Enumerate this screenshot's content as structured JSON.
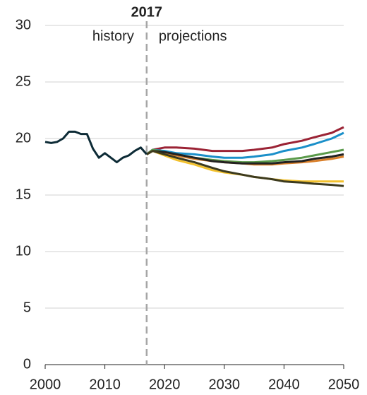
{
  "chart_data": {
    "type": "line",
    "annotations": [
      {
        "text": "2017",
        "x": 2017
      },
      {
        "text": "history"
      },
      {
        "text": "projections"
      }
    ],
    "vline": 2017,
    "xlim": [
      2000,
      2050
    ],
    "xticks": [
      2000,
      2010,
      2020,
      2030,
      2040,
      2050
    ],
    "ylim": [
      0,
      30
    ],
    "yticks": [
      0,
      5,
      10,
      15,
      20,
      25,
      30
    ],
    "grid": true,
    "series": [
      {
        "color": "#9b2335",
        "x": [
          2017,
          2018,
          2020,
          2022,
          2025,
          2028,
          2030,
          2033,
          2035,
          2038,
          2040,
          2043,
          2045,
          2048,
          2050
        ],
        "values": [
          18.6,
          19.0,
          19.2,
          19.2,
          19.1,
          18.9,
          18.9,
          18.9,
          19.0,
          19.2,
          19.5,
          19.8,
          20.1,
          20.5,
          21.0
        ]
      },
      {
        "color": "#1a8fc9",
        "x": [
          2017,
          2018,
          2020,
          2022,
          2025,
          2028,
          2030,
          2033,
          2035,
          2038,
          2040,
          2043,
          2045,
          2048,
          2050
        ],
        "values": [
          18.6,
          19.0,
          18.9,
          18.7,
          18.6,
          18.4,
          18.3,
          18.3,
          18.4,
          18.6,
          18.9,
          19.2,
          19.5,
          20.0,
          20.5
        ]
      },
      {
        "color": "#5a9a4a",
        "x": [
          2017,
          2018,
          2020,
          2022,
          2025,
          2028,
          2030,
          2033,
          2035,
          2038,
          2040,
          2043,
          2045,
          2048,
          2050
        ],
        "values": [
          18.6,
          19.0,
          18.8,
          18.6,
          18.3,
          18.1,
          18.0,
          17.9,
          17.9,
          18.0,
          18.1,
          18.3,
          18.5,
          18.8,
          19.0
        ]
      },
      {
        "color": "#d97f2a",
        "x": [
          2017,
          2018,
          2020,
          2022,
          2025,
          2028,
          2030,
          2033,
          2035,
          2038,
          2040,
          2043,
          2045,
          2048,
          2050
        ],
        "values": [
          18.6,
          18.9,
          18.7,
          18.5,
          18.2,
          18.0,
          17.9,
          17.8,
          17.7,
          17.7,
          17.8,
          17.9,
          18.0,
          18.2,
          18.4
        ]
      },
      {
        "color": "#222222",
        "x": [
          2017,
          2018,
          2020,
          2022,
          2025,
          2028,
          2030,
          2033,
          2035,
          2038,
          2040,
          2043,
          2045,
          2048,
          2050
        ],
        "values": [
          18.6,
          18.9,
          18.8,
          18.6,
          18.3,
          18.0,
          17.9,
          17.8,
          17.8,
          17.8,
          17.9,
          18.0,
          18.2,
          18.4,
          18.6
        ]
      },
      {
        "color": "#f2c12e",
        "x": [
          2017,
          2018,
          2020,
          2022,
          2025,
          2028,
          2030,
          2033,
          2035,
          2038,
          2040,
          2043,
          2045,
          2048,
          2050
        ],
        "values": [
          18.6,
          18.9,
          18.5,
          18.1,
          17.7,
          17.2,
          17.0,
          16.8,
          16.6,
          16.4,
          16.3,
          16.2,
          16.2,
          16.2,
          16.2
        ]
      },
      {
        "color": "#3c3a1e",
        "x": [
          2017,
          2018,
          2020,
          2022,
          2025,
          2028,
          2030,
          2033,
          2035,
          2038,
          2040,
          2043,
          2045,
          2048,
          2050
        ],
        "values": [
          18.6,
          18.9,
          18.6,
          18.3,
          17.9,
          17.4,
          17.1,
          16.8,
          16.6,
          16.4,
          16.2,
          16.1,
          16.0,
          15.9,
          15.8
        ]
      },
      {
        "color": "#0d2b36",
        "x": [
          2000,
          2001,
          2002,
          2003,
          2004,
          2005,
          2006,
          2007,
          2008,
          2009,
          2010,
          2011,
          2012,
          2013,
          2014,
          2015,
          2016,
          2017
        ],
        "values": [
          19.7,
          19.6,
          19.7,
          20.0,
          20.6,
          20.6,
          20.4,
          20.4,
          19.1,
          18.3,
          18.7,
          18.3,
          17.9,
          18.3,
          18.5,
          18.9,
          19.2,
          18.6
        ]
      }
    ]
  }
}
